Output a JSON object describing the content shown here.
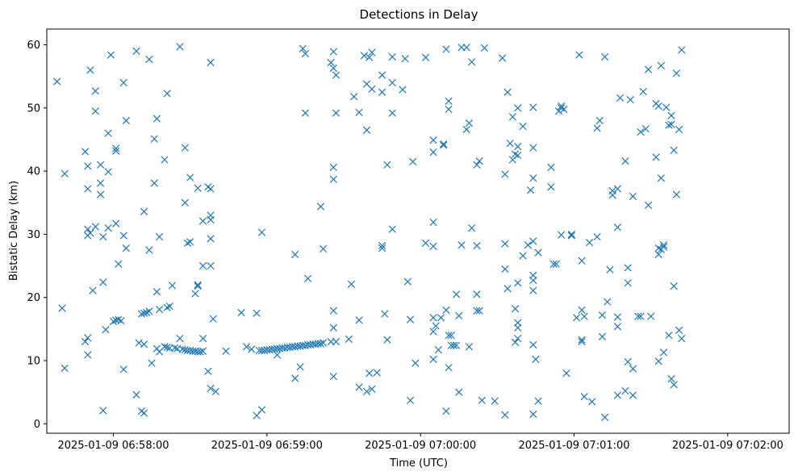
{
  "chart_data": {
    "type": "scatter",
    "title": "Detections in Delay",
    "xlabel": "Time (UTC)",
    "ylabel": "Bistatic Delay (km)",
    "marker": "x",
    "color": "#1f77b4",
    "grid": false,
    "xlim": [
      "2025-01-09 06:57:34",
      "2025-01-09 07:02:24"
    ],
    "ylim": [
      -1.5,
      62.5
    ],
    "x_ticks": [
      {
        "t": "2025-01-09 06:58:00",
        "label": "2025-01-09 06:58:00"
      },
      {
        "t": "2025-01-09 06:59:00",
        "label": "2025-01-09 06:59:00"
      },
      {
        "t": "2025-01-09 07:00:00",
        "label": "2025-01-09 07:00:00"
      },
      {
        "t": "2025-01-09 07:01:00",
        "label": "2025-01-09 07:01:00"
      },
      {
        "t": "2025-01-09 07:02:00",
        "label": "2025-01-09 07:02:00"
      }
    ],
    "y_ticks": [
      0,
      10,
      20,
      30,
      40,
      50,
      60
    ],
    "points": [
      [
        "06:57:38",
        54.2
      ],
      [
        "06:57:41",
        39.6
      ],
      [
        "06:57:40",
        18.3
      ],
      [
        "06:57:41",
        8.8
      ],
      [
        "06:57:49",
        43.1
      ],
      [
        "06:57:50",
        40.8
      ],
      [
        "06:57:50",
        37.2
      ],
      [
        "06:57:51",
        56.0
      ],
      [
        "06:57:50",
        30.8
      ],
      [
        "06:57:50",
        29.8
      ],
      [
        "06:57:51",
        30.2
      ],
      [
        "06:57:49",
        13.0
      ],
      [
        "06:57:50",
        13.6
      ],
      [
        "06:57:50",
        10.9
      ],
      [
        "06:57:53",
        52.7
      ],
      [
        "06:57:53",
        49.5
      ],
      [
        "06:57:53",
        31.2
      ],
      [
        "06:57:52",
        21.1
      ],
      [
        "06:57:55",
        41.0
      ],
      [
        "06:57:55",
        38.1
      ],
      [
        "06:57:55",
        36.3
      ],
      [
        "06:57:56",
        29.6
      ],
      [
        "06:57:56",
        22.4
      ],
      [
        "06:57:57",
        14.9
      ],
      [
        "06:57:56",
        2.1
      ],
      [
        "06:57:58",
        46.0
      ],
      [
        "06:57:58",
        39.9
      ],
      [
        "06:57:58",
        31.0
      ],
      [
        "06:57:59",
        58.4
      ],
      [
        "06:58:00",
        16.2
      ],
      [
        "06:58:01",
        16.4
      ],
      [
        "06:58:02",
        16.5
      ],
      [
        "06:58:03",
        16.3
      ],
      [
        "06:58:01",
        43.6
      ],
      [
        "06:58:01",
        43.2
      ],
      [
        "06:58:01",
        31.7
      ],
      [
        "06:58:02",
        25.3
      ],
      [
        "06:58:04",
        54.0
      ],
      [
        "06:58:04",
        29.8
      ],
      [
        "06:58:05",
        27.8
      ],
      [
        "06:58:05",
        48.0
      ],
      [
        "06:58:04",
        8.6
      ],
      [
        "06:58:09",
        59.0
      ],
      [
        "06:58:09",
        4.6
      ],
      [
        "06:58:10",
        12.8
      ],
      [
        "06:58:11",
        17.4
      ],
      [
        "06:58:12",
        17.5
      ],
      [
        "06:58:13",
        17.6
      ],
      [
        "06:58:14",
        17.8
      ],
      [
        "06:58:12",
        33.6
      ],
      [
        "06:58:12",
        12.6
      ],
      [
        "06:58:11",
        2.0
      ],
      [
        "06:58:12",
        1.7
      ],
      [
        "06:58:14",
        57.7
      ],
      [
        "06:58:14",
        27.5
      ],
      [
        "06:58:15",
        9.6
      ],
      [
        "06:58:16",
        38.1
      ],
      [
        "06:58:16",
        45.1
      ],
      [
        "06:58:17",
        48.3
      ],
      [
        "06:58:17",
        11.9
      ],
      [
        "06:58:18",
        11.4
      ],
      [
        "06:58:17",
        20.9
      ],
      [
        "06:58:18",
        18.1
      ],
      [
        "06:58:18",
        29.6
      ],
      [
        "06:58:20",
        41.8
      ],
      [
        "06:58:20",
        12.2
      ],
      [
        "06:58:21",
        12.1
      ],
      [
        "06:58:22",
        12.0
      ],
      [
        "06:58:21",
        52.3
      ],
      [
        "06:58:21",
        18.4
      ],
      [
        "06:58:22",
        18.6
      ],
      [
        "06:58:23",
        21.9
      ],
      [
        "06:58:24",
        12.0
      ],
      [
        "06:58:25",
        11.9
      ],
      [
        "06:58:26",
        59.7
      ],
      [
        "06:58:26",
        13.5
      ],
      [
        "06:58:27",
        11.8
      ],
      [
        "06:58:28",
        11.7
      ],
      [
        "06:58:29",
        11.6
      ],
      [
        "06:58:30",
        11.6
      ],
      [
        "06:58:31",
        11.5
      ],
      [
        "06:58:32",
        11.5
      ],
      [
        "06:58:33",
        11.4
      ],
      [
        "06:58:34",
        11.4
      ],
      [
        "06:58:35",
        11.5
      ],
      [
        "06:58:28",
        43.7
      ],
      [
        "06:58:28",
        35.0
      ],
      [
        "06:58:29",
        28.6
      ],
      [
        "06:58:30",
        28.8
      ],
      [
        "06:58:30",
        39.0
      ],
      [
        "06:58:32",
        20.6
      ],
      [
        "06:58:33",
        21.8
      ],
      [
        "06:58:33",
        22.0
      ],
      [
        "06:58:33",
        37.3
      ],
      [
        "06:58:35",
        32.1
      ],
      [
        "06:58:35",
        25.0
      ],
      [
        "06:58:35",
        13.5
      ],
      [
        "06:58:37",
        8.3
      ],
      [
        "06:58:37",
        37.5
      ],
      [
        "06:58:38",
        37.2
      ],
      [
        "06:58:38",
        33.0
      ],
      [
        "06:58:38",
        32.3
      ],
      [
        "06:58:38",
        29.3
      ],
      [
        "06:58:38",
        25.0
      ],
      [
        "06:58:38",
        57.2
      ],
      [
        "06:58:39",
        16.6
      ],
      [
        "06:58:38",
        5.6
      ],
      [
        "06:58:40",
        5.1
      ],
      [
        "06:58:44",
        11.5
      ],
      [
        "06:58:50",
        17.6
      ],
      [
        "06:58:52",
        12.2
      ],
      [
        "06:58:54",
        11.8
      ],
      [
        "06:58:56",
        17.5
      ],
      [
        "06:58:56",
        1.3
      ],
      [
        "06:58:57",
        11.6
      ],
      [
        "06:58:58",
        11.6
      ],
      [
        "06:58:58",
        30.3
      ],
      [
        "06:58:58",
        2.2
      ],
      [
        "06:58:59",
        11.6
      ],
      [
        "06:59:00",
        11.7
      ],
      [
        "06:59:01",
        11.7
      ],
      [
        "06:59:02",
        11.8
      ],
      [
        "06:59:03",
        11.8
      ],
      [
        "06:59:04",
        11.9
      ],
      [
        "06:59:04",
        10.9
      ],
      [
        "06:59:05",
        11.9
      ],
      [
        "06:59:06",
        12.0
      ],
      [
        "06:59:07",
        12.0
      ],
      [
        "06:59:08",
        12.1
      ],
      [
        "06:59:09",
        12.1
      ],
      [
        "06:59:10",
        12.2
      ],
      [
        "06:59:11",
        12.2
      ],
      [
        "06:59:12",
        12.3
      ],
      [
        "06:59:13",
        12.3
      ],
      [
        "06:59:14",
        12.4
      ],
      [
        "06:59:15",
        12.4
      ],
      [
        "06:59:16",
        12.5
      ],
      [
        "06:59:17",
        12.5
      ],
      [
        "06:59:18",
        12.6
      ],
      [
        "06:59:19",
        12.6
      ],
      [
        "06:59:20",
        12.7
      ],
      [
        "06:59:21",
        12.7
      ],
      [
        "06:59:22",
        12.8
      ],
      [
        "06:59:11",
        26.8
      ],
      [
        "06:59:11",
        7.2
      ],
      [
        "06:59:13",
        9.0
      ],
      [
        "06:59:14",
        59.4
      ],
      [
        "06:59:15",
        58.6
      ],
      [
        "06:59:15",
        49.2
      ],
      [
        "06:59:16",
        23.0
      ],
      [
        "06:59:21",
        34.4
      ],
      [
        "06:59:22",
        27.7
      ],
      [
        "06:59:25",
        57.2
      ],
      [
        "06:59:26",
        58.9
      ],
      [
        "06:59:26",
        56.3
      ],
      [
        "06:59:27",
        55.2
      ],
      [
        "06:59:27",
        49.2
      ],
      [
        "06:59:26",
        40.6
      ],
      [
        "06:59:26",
        38.7
      ],
      [
        "06:59:26",
        17.9
      ],
      [
        "06:59:26",
        15.2
      ],
      [
        "06:59:25",
        13.0
      ],
      [
        "06:59:27",
        13.0
      ],
      [
        "06:59:26",
        7.5
      ],
      [
        "06:59:32",
        13.4
      ],
      [
        "06:59:33",
        22.1
      ],
      [
        "06:59:34",
        51.8
      ],
      [
        "06:59:36",
        49.3
      ],
      [
        "06:59:36",
        16.4
      ],
      [
        "06:59:36",
        5.8
      ],
      [
        "06:59:38",
        58.3
      ],
      [
        "06:59:39",
        53.8
      ],
      [
        "06:59:39",
        46.5
      ],
      [
        "06:59:39",
        5.1
      ],
      [
        "06:59:40",
        58.0
      ],
      [
        "06:59:41",
        58.8
      ],
      [
        "06:59:41",
        53.0
      ],
      [
        "06:59:40",
        8.0
      ],
      [
        "06:59:41",
        5.5
      ],
      [
        "06:59:43",
        8.1
      ],
      [
        "06:59:45",
        55.2
      ],
      [
        "06:59:45",
        52.5
      ],
      [
        "06:59:45",
        28.2
      ],
      [
        "06:59:45",
        27.8
      ],
      [
        "06:59:46",
        17.4
      ],
      [
        "06:59:47",
        41.0
      ],
      [
        "06:59:47",
        13.3
      ],
      [
        "06:59:49",
        58.1
      ],
      [
        "06:59:49",
        54.0
      ],
      [
        "06:59:49",
        49.2
      ],
      [
        "06:59:49",
        30.8
      ],
      [
        "06:59:53",
        52.9
      ],
      [
        "06:59:54",
        57.8
      ],
      [
        "06:59:55",
        22.5
      ],
      [
        "06:59:56",
        16.5
      ],
      [
        "06:59:56",
        3.7
      ],
      [
        "06:59:57",
        41.5
      ],
      [
        "06:59:58",
        9.6
      ],
      [
        "07:00:02",
        58.0
      ],
      [
        "07:00:02",
        28.6
      ],
      [
        "07:00:05",
        44.9
      ],
      [
        "07:00:05",
        43.0
      ],
      [
        "07:00:05",
        31.9
      ],
      [
        "07:00:05",
        28.1
      ],
      [
        "07:00:05",
        16.8
      ],
      [
        "07:00:05",
        14.6
      ],
      [
        "07:00:05",
        10.2
      ],
      [
        "07:00:06",
        15.5
      ],
      [
        "07:00:07",
        11.7
      ],
      [
        "07:00:08",
        16.8
      ],
      [
        "07:00:09",
        44.3
      ],
      [
        "07:00:09",
        44.1
      ],
      [
        "07:00:10",
        59.3
      ],
      [
        "07:00:10",
        18.0
      ],
      [
        "07:00:10",
        2.0
      ],
      [
        "07:00:11",
        8.9
      ],
      [
        "07:00:11",
        14.0
      ],
      [
        "07:00:11",
        51.1
      ],
      [
        "07:00:11",
        49.8
      ],
      [
        "07:00:12",
        14.0
      ],
      [
        "07:00:12",
        12.4
      ],
      [
        "07:00:13",
        12.4
      ],
      [
        "07:00:14",
        20.5
      ],
      [
        "07:00:14",
        12.4
      ],
      [
        "07:00:15",
        17.1
      ],
      [
        "07:00:15",
        5.0
      ],
      [
        "07:00:16",
        28.3
      ],
      [
        "07:00:16",
        59.6
      ],
      [
        "07:00:18",
        59.6
      ],
      [
        "07:00:18",
        46.6
      ],
      [
        "07:00:19",
        47.6
      ],
      [
        "07:00:19",
        12.2
      ],
      [
        "07:00:20",
        57.3
      ],
      [
        "07:00:20",
        31.0
      ],
      [
        "07:00:22",
        41.0
      ],
      [
        "07:00:22",
        28.2
      ],
      [
        "07:00:22",
        20.5
      ],
      [
        "07:00:22",
        17.9
      ],
      [
        "07:00:23",
        17.9
      ],
      [
        "07:00:23",
        41.6
      ],
      [
        "07:00:24",
        3.7
      ],
      [
        "07:00:25",
        59.5
      ],
      [
        "07:00:29",
        3.6
      ],
      [
        "07:00:32",
        57.9
      ],
      [
        "07:00:33",
        39.5
      ],
      [
        "07:00:33",
        28.5
      ],
      [
        "07:00:33",
        24.5
      ],
      [
        "07:00:34",
        52.5
      ],
      [
        "07:00:34",
        21.4
      ],
      [
        "07:00:33",
        1.4
      ],
      [
        "07:00:35",
        44.4
      ],
      [
        "07:00:36",
        48.6
      ],
      [
        "07:00:36",
        41.8
      ],
      [
        "07:00:37",
        42.7
      ],
      [
        "07:00:37",
        18.2
      ],
      [
        "07:00:37",
        12.9
      ],
      [
        "07:00:38",
        50.0
      ],
      [
        "07:00:38",
        43.9
      ],
      [
        "07:00:38",
        42.5
      ],
      [
        "07:00:38",
        15.2
      ],
      [
        "07:00:38",
        13.5
      ],
      [
        "07:00:38",
        22.3
      ],
      [
        "07:00:38",
        16.0
      ],
      [
        "07:00:40",
        26.6
      ],
      [
        "07:00:40",
        47.1
      ],
      [
        "07:00:42",
        28.3
      ],
      [
        "07:00:43",
        37.0
      ],
      [
        "07:00:44",
        50.1
      ],
      [
        "07:00:44",
        43.7
      ],
      [
        "07:00:44",
        38.9
      ],
      [
        "07:00:44",
        28.9
      ],
      [
        "07:00:44",
        23.5
      ],
      [
        "07:00:44",
        22.7
      ],
      [
        "07:00:44",
        21.1
      ],
      [
        "07:00:44",
        12.5
      ],
      [
        "07:00:44",
        1.5
      ],
      [
        "07:00:45",
        10.2
      ],
      [
        "07:00:46",
        27.1
      ],
      [
        "07:00:46",
        3.6
      ],
      [
        "07:00:51",
        40.6
      ],
      [
        "07:00:51",
        37.5
      ],
      [
        "07:00:52",
        25.3
      ],
      [
        "07:00:53",
        25.3
      ],
      [
        "07:00:54",
        49.5
      ],
      [
        "07:00:55",
        50.0
      ],
      [
        "07:00:55",
        50.3
      ],
      [
        "07:00:55",
        29.9
      ],
      [
        "07:00:56",
        49.8
      ],
      [
        "07:00:57",
        8.0
      ],
      [
        "07:00:59",
        29.8
      ],
      [
        "07:00:59",
        30.0
      ],
      [
        "07:01:01",
        16.8
      ],
      [
        "07:01:02",
        58.4
      ],
      [
        "07:01:03",
        18.0
      ],
      [
        "07:01:03",
        13.3
      ],
      [
        "07:01:03",
        13.0
      ],
      [
        "07:01:03",
        25.8
      ],
      [
        "07:01:04",
        17.0
      ],
      [
        "07:01:04",
        4.3
      ],
      [
        "07:01:06",
        28.7
      ],
      [
        "07:01:07",
        3.5
      ],
      [
        "07:01:09",
        29.6
      ],
      [
        "07:01:09",
        46.8
      ],
      [
        "07:01:10",
        48.0
      ],
      [
        "07:01:11",
        17.2
      ],
      [
        "07:01:11",
        13.8
      ],
      [
        "07:01:12",
        1.0
      ],
      [
        "07:01:12",
        58.1
      ],
      [
        "07:01:13",
        19.3
      ],
      [
        "07:01:14",
        24.4
      ],
      [
        "07:01:15",
        36.2
      ],
      [
        "07:01:15",
        36.9
      ],
      [
        "07:01:17",
        37.2
      ],
      [
        "07:01:17",
        31.1
      ],
      [
        "07:01:17",
        16.9
      ],
      [
        "07:01:17",
        15.4
      ],
      [
        "07:01:17",
        4.5
      ],
      [
        "07:01:18",
        51.6
      ],
      [
        "07:01:20",
        41.6
      ],
      [
        "07:01:21",
        24.7
      ],
      [
        "07:01:21",
        22.3
      ],
      [
        "07:01:20",
        5.2
      ],
      [
        "07:01:21",
        9.8
      ],
      [
        "07:01:22",
        51.3
      ],
      [
        "07:01:23",
        36.0
      ],
      [
        "07:01:23",
        8.7
      ],
      [
        "07:01:23",
        4.5
      ],
      [
        "07:01:25",
        17.0
      ],
      [
        "07:01:26",
        46.2
      ],
      [
        "07:01:26",
        17.0
      ],
      [
        "07:01:27",
        52.6
      ],
      [
        "07:01:28",
        46.7
      ],
      [
        "07:01:29",
        56.1
      ],
      [
        "07:01:29",
        34.6
      ],
      [
        "07:01:30",
        17.0
      ],
      [
        "07:01:32",
        42.2
      ],
      [
        "07:01:32",
        50.7
      ],
      [
        "07:01:33",
        50.3
      ],
      [
        "07:01:33",
        27.8
      ],
      [
        "07:01:33",
        26.8
      ],
      [
        "07:01:34",
        27.6
      ],
      [
        "07:01:35",
        28.0
      ],
      [
        "07:01:35",
        28.3
      ],
      [
        "07:01:33",
        9.9
      ],
      [
        "07:01:34",
        38.9
      ],
      [
        "07:01:34",
        56.7
      ],
      [
        "07:01:35",
        11.3
      ],
      [
        "07:01:36",
        50.1
      ],
      [
        "07:01:37",
        47.3
      ],
      [
        "07:01:37",
        14.0
      ],
      [
        "07:01:38",
        48.8
      ],
      [
        "07:01:38",
        47.4
      ],
      [
        "07:01:38",
        7.1
      ],
      [
        "07:01:39",
        6.2
      ],
      [
        "07:01:39",
        43.3
      ],
      [
        "07:01:39",
        21.8
      ],
      [
        "07:01:40",
        55.5
      ],
      [
        "07:01:41",
        46.6
      ],
      [
        "07:01:40",
        36.3
      ],
      [
        "07:01:41",
        14.8
      ],
      [
        "07:01:42",
        13.5
      ],
      [
        "07:01:42",
        59.2
      ]
    ]
  }
}
